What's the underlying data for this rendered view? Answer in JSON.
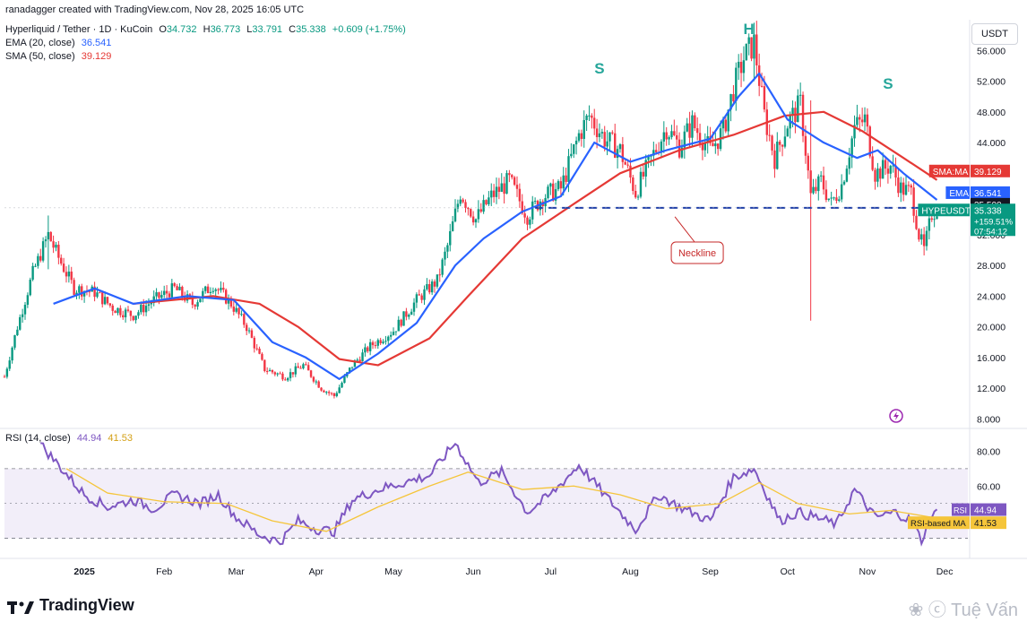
{
  "credit": "ranadagger created with TradingView.com, Nov 28, 2025 16:05 UTC",
  "symbol_line": {
    "name": "Hyperliquid / Tether · 1D · KuCoin",
    "o_label": "O",
    "o": "34.732",
    "h_label": "H",
    "h": "36.773",
    "l_label": "L",
    "l": "33.791",
    "c_label": "C",
    "c": "35.338",
    "change": "+0.609 (+1.75%)"
  },
  "indicators": {
    "ema_label": "EMA (20, close)",
    "ema_value": "36.541",
    "sma_label": "SMA (50, close)",
    "sma_value": "39.129",
    "rsi_label": "RSI (14, close)",
    "rsi_value": "44.94",
    "rsi_ma_value": "41.53"
  },
  "currency_button": "USDT",
  "brand": "TradingView",
  "watermark": "Tuệ Vấn",
  "colors": {
    "up": "#089981",
    "down": "#f23645",
    "ema": "#2962ff",
    "sma": "#e53935",
    "rsi": "#7e57c2",
    "rsi_ma": "#f5c53a",
    "neckline": "#1e3fa8",
    "annotation": "#26a69a"
  },
  "chart_data": [
    {
      "type": "candlestick",
      "title": "Hyperliquid / Tether · 1D · KuCoin",
      "x_range": [
        "2024-12-01",
        "2025-12-10"
      ],
      "ylim": [
        7,
        60
      ],
      "y_ticks": [
        "8.000",
        "12.000",
        "16.000",
        "20.000",
        "24.000",
        "28.000",
        "32.000",
        "36.000",
        "40.000",
        "44.000",
        "48.000",
        "52.000",
        "56.000"
      ],
      "x_ticks": [
        "2025",
        "Feb",
        "Mar",
        "Apr",
        "May",
        "Jun",
        "Jul",
        "Aug",
        "Sep",
        "Oct",
        "Nov",
        "Dec"
      ],
      "close_path": [
        [
          "2024-12-01",
          13.5
        ],
        [
          "2024-12-06",
          20.0
        ],
        [
          "2024-12-12",
          27.0
        ],
        [
          "2024-12-18",
          32.0
        ],
        [
          "2024-12-22",
          29.0
        ],
        [
          "2024-12-28",
          25.0
        ],
        [
          "2025-01-05",
          24.5
        ],
        [
          "2025-01-12",
          22.5
        ],
        [
          "2025-01-20",
          21.5
        ],
        [
          "2025-01-28",
          23.5
        ],
        [
          "2025-02-05",
          25.0
        ],
        [
          "2025-02-12",
          23.0
        ],
        [
          "2025-02-20",
          25.5
        ],
        [
          "2025-02-27",
          23.0
        ],
        [
          "2025-03-05",
          20.0
        ],
        [
          "2025-03-12",
          14.5
        ],
        [
          "2025-03-20",
          13.5
        ],
        [
          "2025-03-27",
          15.0
        ],
        [
          "2025-04-03",
          12.0
        ],
        [
          "2025-04-08",
          11.0
        ],
        [
          "2025-04-15",
          15.0
        ],
        [
          "2025-04-22",
          17.5
        ],
        [
          "2025-05-01",
          19.5
        ],
        [
          "2025-05-10",
          23.5
        ],
        [
          "2025-05-18",
          26.0
        ],
        [
          "2025-05-22",
          30.5
        ],
        [
          "2025-05-27",
          37.5
        ],
        [
          "2025-06-02",
          34.0
        ],
        [
          "2025-06-08",
          37.0
        ],
        [
          "2025-06-15",
          39.0
        ],
        [
          "2025-06-22",
          34.5
        ],
        [
          "2025-06-28",
          37.0
        ],
        [
          "2025-07-05",
          38.0
        ],
        [
          "2025-07-12",
          45.0
        ],
        [
          "2025-07-16",
          47.5
        ],
        [
          "2025-07-22",
          44.5
        ],
        [
          "2025-07-28",
          43.0
        ],
        [
          "2025-08-03",
          37.5
        ],
        [
          "2025-08-10",
          42.5
        ],
        [
          "2025-08-15",
          46.0
        ],
        [
          "2025-08-20",
          43.5
        ],
        [
          "2025-08-25",
          46.5
        ],
        [
          "2025-09-01",
          43.0
        ],
        [
          "2025-09-06",
          45.5
        ],
        [
          "2025-09-10",
          51.0
        ],
        [
          "2025-09-14",
          55.0
        ],
        [
          "2025-09-18",
          57.0
        ],
        [
          "2025-09-22",
          47.5
        ],
        [
          "2025-09-26",
          42.0
        ],
        [
          "2025-10-01",
          46.5
        ],
        [
          "2025-10-06",
          49.0
        ],
        [
          "2025-10-10",
          37.0
        ],
        [
          "2025-10-14",
          39.0
        ],
        [
          "2025-10-18",
          36.0
        ],
        [
          "2025-10-22",
          38.5
        ],
        [
          "2025-10-27",
          46.0
        ],
        [
          "2025-10-31",
          47.0
        ],
        [
          "2025-11-04",
          40.0
        ],
        [
          "2025-11-10",
          41.0
        ],
        [
          "2025-11-14",
          38.0
        ],
        [
          "2025-11-18",
          37.5
        ],
        [
          "2025-11-21",
          32.0
        ],
        [
          "2025-11-23",
          30.0
        ],
        [
          "2025-11-26",
          34.7
        ],
        [
          "2025-11-28",
          35.338
        ]
      ],
      "wick_extremes": [
        [
          "2025-10-10",
          20.8,
          49.5
        ],
        [
          "2025-09-18",
          52.0,
          59.2
        ],
        [
          "2025-11-23",
          29.3,
          33.0
        ],
        [
          "2024-12-18",
          27.5,
          34.5
        ]
      ],
      "series": [
        {
          "name": "EMA",
          "values": [
            [
              "2024-12-20",
              23.0
            ],
            [
              "2025-01-05",
              25.0
            ],
            [
              "2025-01-20",
              23.0
            ],
            [
              "2025-02-10",
              24.0
            ],
            [
              "2025-02-28",
              23.5
            ],
            [
              "2025-03-15",
              18.0
            ],
            [
              "2025-03-28",
              16.0
            ],
            [
              "2025-04-10",
              13.2
            ],
            [
              "2025-04-25",
              16.5
            ],
            [
              "2025-05-10",
              20.5
            ],
            [
              "2025-05-25",
              28.0
            ],
            [
              "2025-06-05",
              31.5
            ],
            [
              "2025-06-20",
              35.0
            ],
            [
              "2025-07-05",
              37.0
            ],
            [
              "2025-07-18",
              44.0
            ],
            [
              "2025-08-01",
              41.5
            ],
            [
              "2025-08-15",
              43.0
            ],
            [
              "2025-09-01",
              44.5
            ],
            [
              "2025-09-12",
              50.0
            ],
            [
              "2025-09-20",
              53.0
            ],
            [
              "2025-10-01",
              47.0
            ],
            [
              "2025-10-15",
              44.0
            ],
            [
              "2025-10-28",
              42.0
            ],
            [
              "2025-11-05",
              43.0
            ],
            [
              "2025-11-15",
              40.0
            ],
            [
              "2025-11-28",
              36.541
            ]
          ]
        },
        {
          "name": "SMA:MA",
          "values": [
            [
              "2025-01-20",
              23.0
            ],
            [
              "2025-02-20",
              24.0
            ],
            [
              "2025-03-10",
              23.0
            ],
            [
              "2025-03-25",
              20.0
            ],
            [
              "2025-04-10",
              15.8
            ],
            [
              "2025-04-25",
              15.0
            ],
            [
              "2025-05-15",
              18.5
            ],
            [
              "2025-05-30",
              24.0
            ],
            [
              "2025-06-20",
              31.5
            ],
            [
              "2025-07-10",
              36.0
            ],
            [
              "2025-07-28",
              40.0
            ],
            [
              "2025-08-20",
              43.0
            ],
            [
              "2025-09-10",
              45.0
            ],
            [
              "2025-09-30",
              47.5
            ],
            [
              "2025-10-15",
              48.0
            ],
            [
              "2025-10-30",
              45.5
            ],
            [
              "2025-11-15",
              42.0
            ],
            [
              "2025-11-28",
              39.129
            ]
          ]
        }
      ],
      "last_price": {
        "symbol": "HYPEUSDT",
        "price": "35.338",
        "change": "+159.51%",
        "countdown": "07:54:12"
      },
      "price_tags": {
        "sma_label": "SMA:MA",
        "sma": "39.129",
        "ema_label": "EMA",
        "ema": "36.541",
        "level": "35.500"
      },
      "neckline": {
        "label": "Neckline",
        "level": 35.5,
        "from": "2025-06-25",
        "to": "2025-12-01"
      },
      "pattern_labels": [
        {
          "text": "S",
          "date": "2025-07-20",
          "price": 53.0
        },
        {
          "text": "H",
          "date": "2025-09-16",
          "price": 62.0
        },
        {
          "text": "S",
          "date": "2025-11-09",
          "price": 51.0
        }
      ]
    },
    {
      "type": "line",
      "title": "RSI (14, close)",
      "ylim": [
        20,
        90
      ],
      "y_ticks": [
        "80.00",
        "60.00"
      ],
      "band": [
        30,
        70
      ],
      "midline": 50,
      "series": [
        {
          "name": "RSI",
          "values": [
            [
              "2024-12-15",
              84
            ],
            [
              "2024-12-22",
              72
            ],
            [
              "2025-01-01",
              55
            ],
            [
              "2025-01-10",
              48
            ],
            [
              "2025-01-20",
              52
            ],
            [
              "2025-01-28",
              47
            ],
            [
              "2025-02-05",
              55
            ],
            [
              "2025-02-15",
              50
            ],
            [
              "2025-02-22",
              55
            ],
            [
              "2025-03-01",
              42
            ],
            [
              "2025-03-10",
              32
            ],
            [
              "2025-03-18",
              28
            ],
            [
              "2025-03-25",
              40
            ],
            [
              "2025-04-02",
              35
            ],
            [
              "2025-04-08",
              34
            ],
            [
              "2025-04-15",
              52
            ],
            [
              "2025-04-25",
              58
            ],
            [
              "2025-05-05",
              62
            ],
            [
              "2025-05-15",
              66
            ],
            [
              "2025-05-25",
              85
            ],
            [
              "2025-06-03",
              62
            ],
            [
              "2025-06-12",
              68
            ],
            [
              "2025-06-22",
              45
            ],
            [
              "2025-07-01",
              55
            ],
            [
              "2025-07-12",
              72
            ],
            [
              "2025-07-22",
              55
            ],
            [
              "2025-08-03",
              35
            ],
            [
              "2025-08-12",
              55
            ],
            [
              "2025-08-20",
              48
            ],
            [
              "2025-09-01",
              40
            ],
            [
              "2025-09-10",
              65
            ],
            [
              "2025-09-18",
              70
            ],
            [
              "2025-09-28",
              40
            ],
            [
              "2025-10-05",
              45
            ],
            [
              "2025-10-12",
              42
            ],
            [
              "2025-10-20",
              38
            ],
            [
              "2025-10-27",
              58
            ],
            [
              "2025-11-04",
              42
            ],
            [
              "2025-11-12",
              45
            ],
            [
              "2025-11-18",
              40
            ],
            [
              "2025-11-22",
              29
            ],
            [
              "2025-11-26",
              42
            ],
            [
              "2025-11-28",
              44.94
            ]
          ]
        },
        {
          "name": "RSI-based MA",
          "values": [
            [
              "2024-12-25",
              70
            ],
            [
              "2025-01-10",
              56
            ],
            [
              "2025-02-01",
              51
            ],
            [
              "2025-02-25",
              50
            ],
            [
              "2025-03-15",
              40
            ],
            [
              "2025-04-05",
              34
            ],
            [
              "2025-04-25",
              48
            ],
            [
              "2025-05-15",
              60
            ],
            [
              "2025-05-30",
              68
            ],
            [
              "2025-06-20",
              58
            ],
            [
              "2025-07-10",
              60
            ],
            [
              "2025-07-28",
              55
            ],
            [
              "2025-08-15",
              47
            ],
            [
              "2025-09-05",
              50
            ],
            [
              "2025-09-20",
              62
            ],
            [
              "2025-10-05",
              50
            ],
            [
              "2025-10-25",
              44
            ],
            [
              "2025-11-10",
              46
            ],
            [
              "2025-11-28",
              41.53
            ]
          ]
        }
      ],
      "value_tags": {
        "rsi_label": "RSI",
        "rsi": "44.94",
        "ma_label": "RSI-based MA",
        "ma": "41.53"
      }
    }
  ]
}
